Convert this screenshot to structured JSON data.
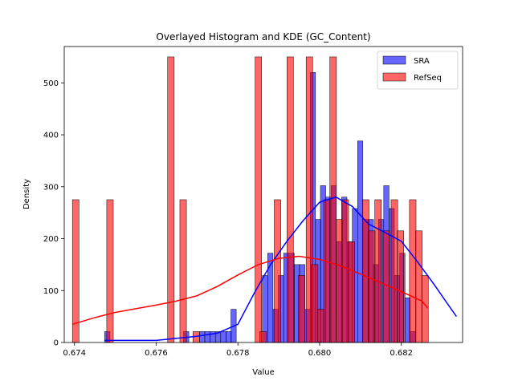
{
  "chart_data": {
    "type": "histogram",
    "title": "Overlayed Histogram and KDE (GC_Content)",
    "xlabel": "Value",
    "ylabel": "Density",
    "xlim": [
      0.67375,
      0.6835
    ],
    "ylim": [
      0,
      570
    ],
    "xticks": [
      0.674,
      0.676,
      0.678,
      0.68,
      0.682
    ],
    "xtick_labels": [
      "0.674",
      "0.676",
      "0.678",
      "0.680",
      "0.682"
    ],
    "yticks": [
      0,
      100,
      200,
      300,
      400,
      500
    ],
    "ytick_labels": [
      "0",
      "100",
      "200",
      "300",
      "400",
      "500"
    ],
    "legend": {
      "placement": "top-right",
      "entries": [
        "SRA",
        "RefSeq"
      ]
    },
    "grid": false,
    "series": [
      {
        "name": "SRA",
        "color": "#0000ff",
        "bin_width": 0.000129,
        "bins": [
          [
            0.67474,
            21
          ],
          [
            0.67667,
            21
          ],
          [
            0.67706,
            21
          ],
          [
            0.67719,
            21
          ],
          [
            0.67732,
            21
          ],
          [
            0.67745,
            21
          ],
          [
            0.67758,
            21
          ],
          [
            0.67771,
            21
          ],
          [
            0.67783,
            64
          ],
          [
            0.6786,
            129
          ],
          [
            0.67873,
            172
          ],
          [
            0.67886,
            64
          ],
          [
            0.67899,
            129
          ],
          [
            0.67912,
            172
          ],
          [
            0.67925,
            172
          ],
          [
            0.67938,
            150
          ],
          [
            0.67951,
            150
          ],
          [
            0.67964,
            64
          ],
          [
            0.67977,
            520
          ],
          [
            0.6799,
            237
          ],
          [
            0.68002,
            302
          ],
          [
            0.68015,
            280
          ],
          [
            0.68028,
            302
          ],
          [
            0.68041,
            194
          ],
          [
            0.68054,
            280
          ],
          [
            0.68067,
            194
          ],
          [
            0.6808,
            258
          ],
          [
            0.68093,
            388
          ],
          [
            0.68106,
            237
          ],
          [
            0.68119,
            237
          ],
          [
            0.68131,
            150
          ],
          [
            0.68144,
            237
          ],
          [
            0.68157,
            302
          ],
          [
            0.6817,
            258
          ],
          [
            0.68183,
            129
          ],
          [
            0.68196,
            172
          ],
          [
            0.68209,
            86
          ],
          [
            0.68222,
            21
          ]
        ],
        "kde": [
          [
            0.67474,
            4
          ],
          [
            0.676,
            4
          ],
          [
            0.677,
            12
          ],
          [
            0.6775,
            18
          ],
          [
            0.678,
            35
          ],
          [
            0.6784,
            95
          ],
          [
            0.6788,
            150
          ],
          [
            0.6792,
            195
          ],
          [
            0.6796,
            235
          ],
          [
            0.68,
            270
          ],
          [
            0.6804,
            280
          ],
          [
            0.6808,
            262
          ],
          [
            0.6812,
            228
          ],
          [
            0.6816,
            212
          ],
          [
            0.682,
            195
          ],
          [
            0.6824,
            155
          ],
          [
            0.6828,
            112
          ],
          [
            0.6831,
            78
          ],
          [
            0.68335,
            50
          ]
        ]
      },
      {
        "name": "RefSeq",
        "color": "#ff0000",
        "bin_width": 0.00016,
        "bins": [
          [
            0.67395,
            275
          ],
          [
            0.67479,
            275
          ],
          [
            0.67628,
            550
          ],
          [
            0.67658,
            275
          ],
          [
            0.6769,
            21
          ],
          [
            0.67842,
            550
          ],
          [
            0.67854,
            21
          ],
          [
            0.67889,
            275
          ],
          [
            0.6792,
            550
          ],
          [
            0.67948,
            129
          ],
          [
            0.67967,
            550
          ],
          [
            0.6798,
            150
          ],
          [
            0.67995,
            64
          ],
          [
            0.6801,
            275
          ],
          [
            0.68025,
            550
          ],
          [
            0.6804,
            237
          ],
          [
            0.68055,
            275
          ],
          [
            0.6807,
            194
          ],
          [
            0.68105,
            275
          ],
          [
            0.6812,
            215
          ],
          [
            0.68135,
            275
          ],
          [
            0.68155,
            215
          ],
          [
            0.68175,
            275
          ],
          [
            0.6819,
            215
          ],
          [
            0.6822,
            275
          ],
          [
            0.68235,
            215
          ],
          [
            0.6825,
            129
          ]
        ],
        "kde": [
          [
            0.67395,
            35
          ],
          [
            0.6745,
            48
          ],
          [
            0.675,
            58
          ],
          [
            0.6755,
            65
          ],
          [
            0.676,
            72
          ],
          [
            0.6765,
            80
          ],
          [
            0.677,
            90
          ],
          [
            0.6775,
            108
          ],
          [
            0.678,
            130
          ],
          [
            0.6785,
            150
          ],
          [
            0.679,
            162
          ],
          [
            0.6795,
            166
          ],
          [
            0.68,
            160
          ],
          [
            0.6805,
            148
          ],
          [
            0.681,
            132
          ],
          [
            0.6815,
            115
          ],
          [
            0.682,
            98
          ],
          [
            0.6825,
            80
          ],
          [
            0.68265,
            66
          ]
        ]
      }
    ]
  }
}
